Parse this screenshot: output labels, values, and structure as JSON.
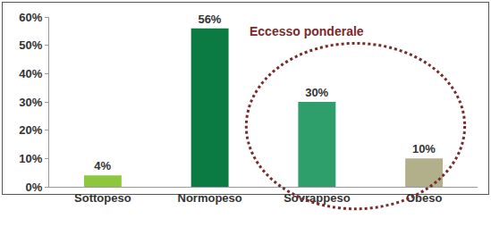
{
  "chart_data": {
    "type": "bar",
    "categories": [
      "Sottopeso",
      "Normopeso",
      "Sovrappeso",
      "Obeso"
    ],
    "values": [
      4,
      56,
      30,
      10
    ],
    "value_labels": [
      "4%",
      "56%",
      "30%",
      "10%"
    ],
    "colors": [
      "#8dc63f",
      "#0b7a43",
      "#2e9e6b",
      "#b2b08a"
    ],
    "ylim": [
      0,
      60
    ],
    "yticks": [
      {
        "value": 0,
        "label": "0%"
      },
      {
        "value": 10,
        "label": "10%"
      },
      {
        "value": 20,
        "label": "20%"
      },
      {
        "value": 30,
        "label": "30%"
      },
      {
        "value": 40,
        "label": "40%"
      },
      {
        "value": 50,
        "label": "50%"
      },
      {
        "value": 60,
        "label": "60%"
      }
    ],
    "grid": false,
    "data_labels": true,
    "annotations": [
      {
        "text": "Eccesso ponderale"
      }
    ]
  }
}
